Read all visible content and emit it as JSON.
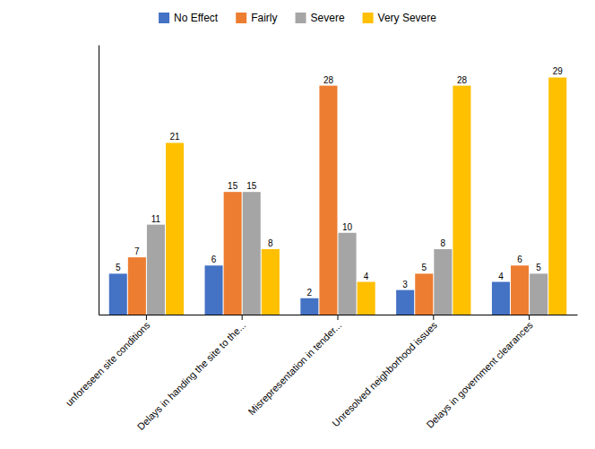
{
  "chart_data": {
    "type": "bar",
    "categories": [
      "unforeseen site conditions",
      "Delays in handing the site to the...",
      "Misrepresentation in tender...",
      "Unresolved neighborhood issues",
      "Delays in government clearances"
    ],
    "series": [
      {
        "name": "No Effect",
        "color": "#4472C4",
        "values": [
          5,
          6,
          2,
          3,
          4
        ]
      },
      {
        "name": "Fairly",
        "color": "#ED7D31",
        "values": [
          7,
          15,
          28,
          5,
          6
        ]
      },
      {
        "name": "Severe",
        "color": "#A5A5A5",
        "values": [
          11,
          15,
          10,
          8,
          5
        ]
      },
      {
        "name": "Very Severe",
        "color": "#FFC000",
        "values": [
          21,
          8,
          4,
          28,
          29
        ]
      }
    ],
    "ylim": [
      0,
      33
    ],
    "data_labels": true,
    "tick_labels": "x",
    "legend": "top",
    "grid": false
  }
}
